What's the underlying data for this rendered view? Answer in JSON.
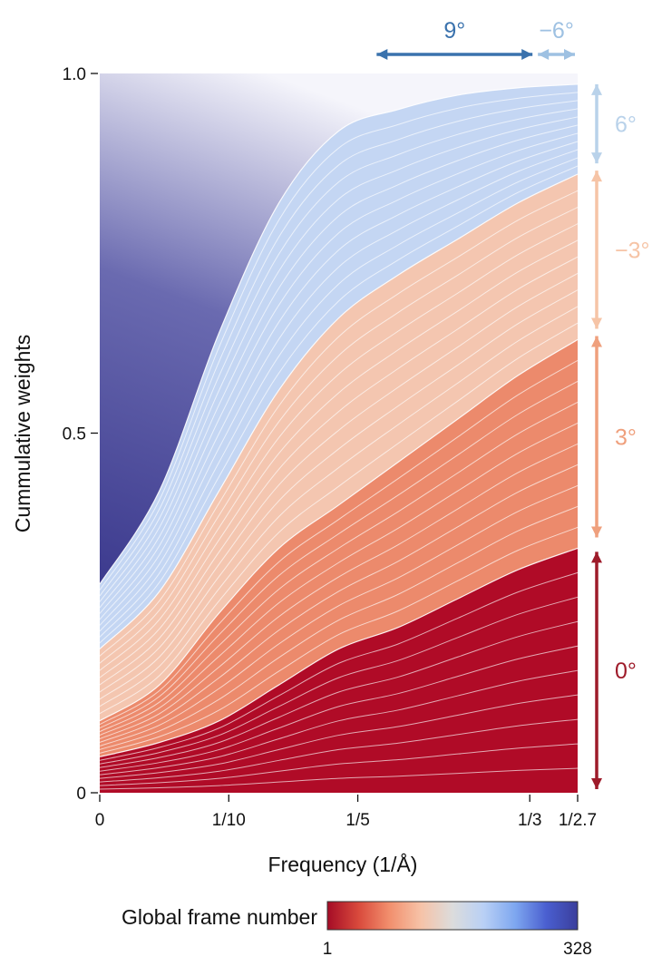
{
  "chart_data": {
    "type": "area",
    "stacked": true,
    "xlabel": "Frequency (1/Å)",
    "ylabel": "Cummulative weights",
    "ylim": [
      0,
      1
    ],
    "xlim": [
      0,
      0.3704
    ],
    "x_ticks": [
      {
        "value": 0,
        "label": "0"
      },
      {
        "value": 0.1,
        "label": "1/10"
      },
      {
        "value": 0.2,
        "label": "1/5"
      },
      {
        "value": 0.3333,
        "label": "1/3"
      },
      {
        "value": 0.3704,
        "label": "1/2.7"
      }
    ],
    "y_ticks": [
      {
        "value": 0,
        "label": "0"
      },
      {
        "value": 0.5,
        "label": "0.5"
      },
      {
        "value": 1.0,
        "label": "1.0"
      }
    ],
    "grid": false,
    "x_samples": [
      0,
      0.0463,
      0.0926,
      0.1389,
      0.1852,
      0.2315,
      0.2778,
      0.3241,
      0.3704
    ],
    "group_boundaries": [
      {
        "name": "0°",
        "values": [
          0.05,
          0.07,
          0.1,
          0.15,
          0.2,
          0.23,
          0.27,
          0.31,
          0.34
        ]
      },
      {
        "name": "3°",
        "values": [
          0.1,
          0.15,
          0.25,
          0.34,
          0.4,
          0.46,
          0.52,
          0.58,
          0.63
        ]
      },
      {
        "name": "−3°",
        "values": [
          0.2,
          0.28,
          0.42,
          0.56,
          0.66,
          0.72,
          0.77,
          0.82,
          0.86
        ]
      },
      {
        "name": "6°",
        "values": [
          0.29,
          0.42,
          0.64,
          0.82,
          0.92,
          0.95,
          0.97,
          0.98,
          0.985
        ]
      },
      {
        "name": "9°",
        "values": [
          1,
          1,
          1,
          1,
          1,
          1,
          1,
          1,
          1
        ]
      }
    ],
    "annotations": [
      {
        "label": "9°",
        "color": "#3a72ad",
        "orientation": "horizontal",
        "x_range": [
          0.2125,
          0.3375
        ]
      },
      {
        "label": "−6°",
        "color": "#9ec1e2",
        "orientation": "horizontal",
        "x_range": [
          0.3375,
          0.3704
        ]
      },
      {
        "label": "6°",
        "color": "#b9d2ea",
        "orientation": "vertical",
        "y_range": [
          0.87,
          0.99
        ]
      },
      {
        "label": "−3°",
        "color": "#f6c4a6",
        "orientation": "vertical",
        "y_range": [
          0.64,
          0.87
        ]
      },
      {
        "label": "3°",
        "color": "#efa07d",
        "orientation": "vertical",
        "y_range": [
          0.35,
          0.64
        ]
      },
      {
        "label": "0°",
        "color": "#9e1b2a",
        "orientation": "vertical",
        "y_range": [
          0.0,
          0.34
        ]
      }
    ],
    "colorbar": {
      "label": "Global frame number",
      "min_label": "1",
      "max_label": "328",
      "stops": [
        "#a50c26",
        "#d94a3c",
        "#f2906e",
        "#f6c3a8",
        "#dcdcdc",
        "#b9d0f5",
        "#7ea7f0",
        "#4a5fd0",
        "#3a3e9c"
      ]
    }
  }
}
